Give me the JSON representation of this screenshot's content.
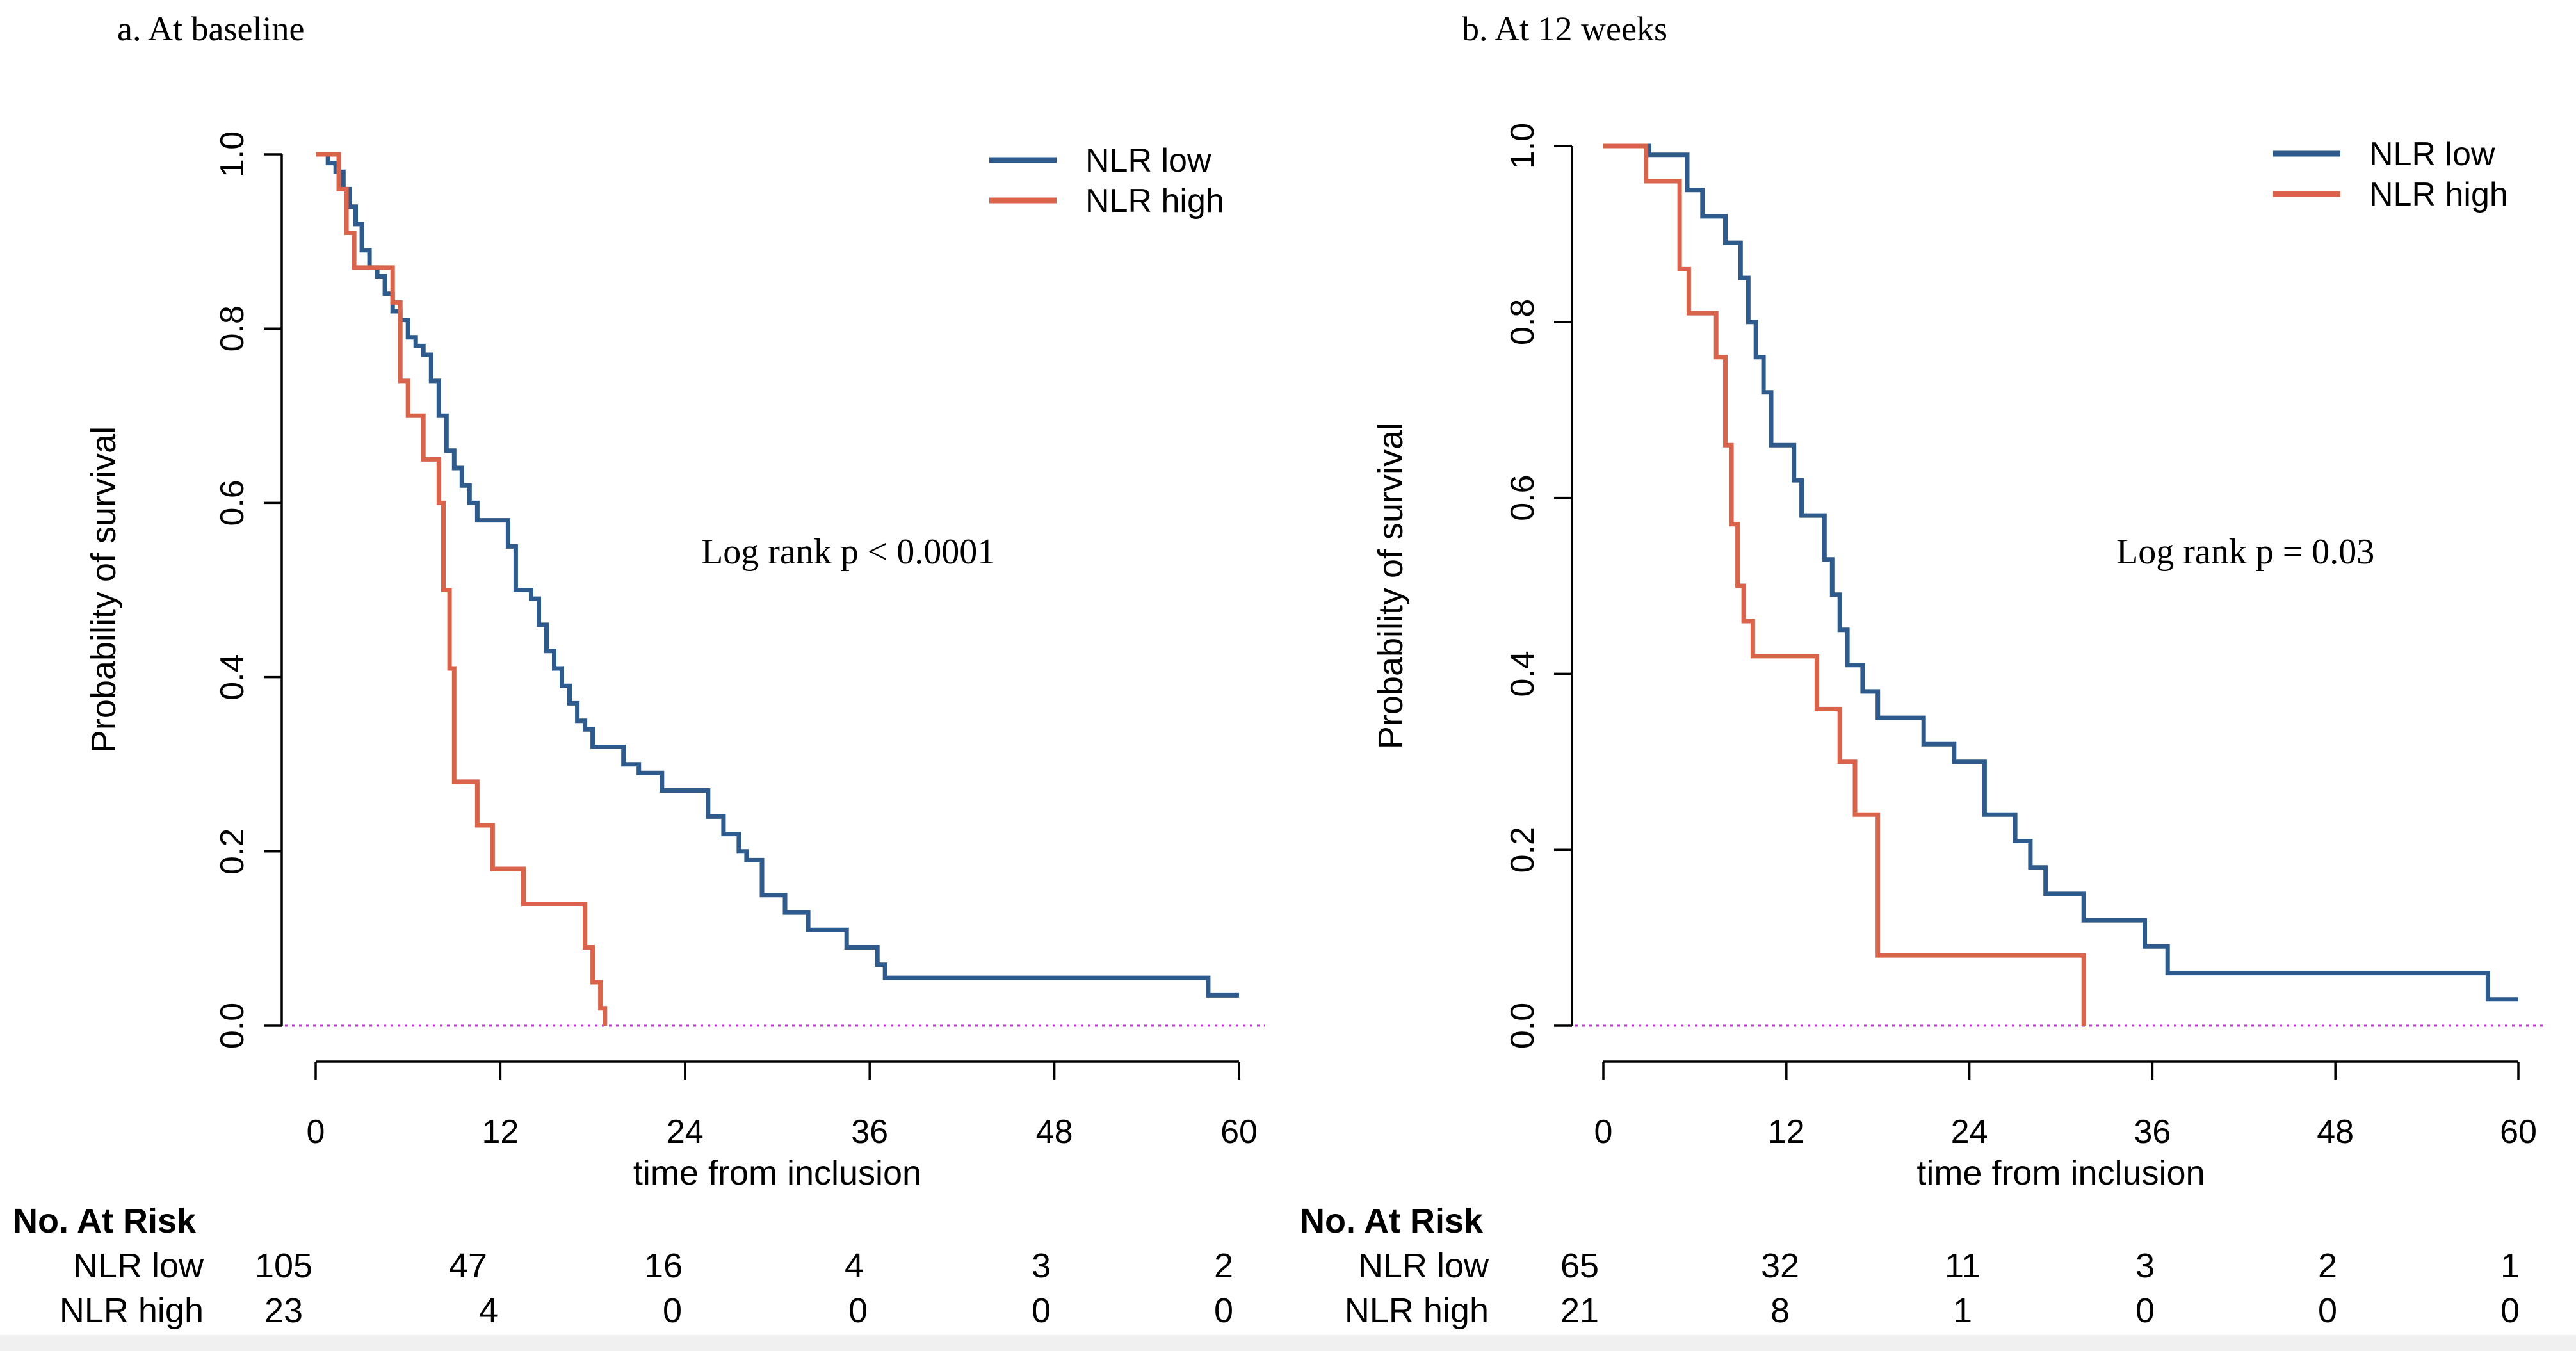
{
  "figure": {
    "colors": {
      "low": "#2e5a8c",
      "high": "#d9634b",
      "axis": "#000000",
      "ref": "#c22fd6"
    },
    "panels": [
      {
        "id": "a",
        "panel_title": "a. At baseline",
        "pvalue_text": "Log rank p < 0.0001",
        "risk_table": {
          "header": "No. At Risk",
          "rows": [
            {
              "label": "NLR low",
              "values": [
                "105",
                "47",
                "16",
                "4",
                "3",
                "2"
              ]
            },
            {
              "label": "NLR high",
              "values": [
                "23",
                "4",
                "0",
                "0",
                "0",
                "0"
              ]
            }
          ]
        }
      },
      {
        "id": "b",
        "panel_title": "b. At 12 weeks",
        "pvalue_text": "Log rank p = 0.03",
        "risk_table": {
          "header": "No. At Risk",
          "rows": [
            {
              "label": "NLR low",
              "values": [
                "65",
                "32",
                "11",
                "3",
                "2",
                "1"
              ]
            },
            {
              "label": "NLR high",
              "values": [
                "21",
                "8",
                "1",
                "0",
                "0",
                "0"
              ]
            }
          ]
        }
      }
    ]
  },
  "chart_data": [
    {
      "type": "line",
      "step": true,
      "title": "a. At baseline",
      "xlabel": "time from inclusion",
      "ylabel": "Probability of survival",
      "xlim": [
        0,
        60
      ],
      "ylim": [
        0,
        1
      ],
      "xticks": [
        0,
        12,
        24,
        36,
        48,
        60
      ],
      "xtick_labels": [
        "0",
        "12",
        "24",
        "36",
        "48",
        "60"
      ],
      "yticks": [
        0,
        0.2,
        0.4,
        0.6,
        0.8,
        1.0
      ],
      "ytick_labels": [
        "0.0",
        "0.2",
        "0.4",
        "0.6",
        "0.8",
        "1.0"
      ],
      "reference_line_y": 0,
      "legend": {
        "position": "top-right",
        "entries": [
          "NLR low",
          "NLR high"
        ]
      },
      "annotation": "Log rank p < 0.0001",
      "series": [
        {
          "name": "NLR low",
          "color": "#2e5a8c",
          "x": [
            0,
            0.8,
            1.3,
            1.8,
            2.2,
            2.6,
            3.0,
            3.5,
            4.0,
            4.5,
            5.0,
            5.5,
            6.0,
            6.5,
            7.0,
            7.5,
            8.0,
            8.5,
            9.0,
            9.5,
            10.0,
            10.5,
            11.0,
            12.5,
            13.0,
            14.0,
            14.5,
            15.0,
            15.5,
            16.0,
            16.5,
            17.0,
            17.5,
            18.0,
            19.0,
            20.0,
            21.0,
            22.5,
            25.5,
            26.5,
            27.5,
            28.0,
            29.0,
            30.5,
            32.0,
            34.5,
            36.5,
            37.0,
            58.0,
            60.0
          ],
          "y": [
            1.0,
            0.99,
            0.98,
            0.96,
            0.94,
            0.92,
            0.89,
            0.87,
            0.86,
            0.84,
            0.82,
            0.81,
            0.79,
            0.78,
            0.77,
            0.74,
            0.7,
            0.66,
            0.64,
            0.62,
            0.6,
            0.58,
            0.58,
            0.55,
            0.5,
            0.49,
            0.46,
            0.43,
            0.41,
            0.39,
            0.37,
            0.35,
            0.34,
            0.32,
            0.32,
            0.3,
            0.29,
            0.27,
            0.24,
            0.22,
            0.2,
            0.19,
            0.15,
            0.13,
            0.11,
            0.09,
            0.07,
            0.055,
            0.035,
            0.035
          ]
        },
        {
          "name": "NLR high",
          "color": "#d9634b",
          "x": [
            0,
            1.5,
            2.0,
            2.5,
            5.0,
            5.5,
            6.0,
            7.0,
            8.0,
            8.3,
            8.7,
            9.0,
            10.5,
            11.5,
            13.5,
            17.5,
            18.0,
            18.5,
            18.8
          ],
          "y": [
            1.0,
            0.96,
            0.91,
            0.87,
            0.83,
            0.74,
            0.7,
            0.65,
            0.6,
            0.5,
            0.41,
            0.28,
            0.23,
            0.18,
            0.14,
            0.09,
            0.05,
            0.02,
            0.0
          ]
        }
      ],
      "risk_table": {
        "times": [
          0,
          12,
          24,
          36,
          48,
          60
        ],
        "NLR low": [
          105,
          47,
          16,
          4,
          3,
          2
        ],
        "NLR high": [
          23,
          4,
          0,
          0,
          0,
          0
        ]
      }
    },
    {
      "type": "line",
      "step": true,
      "title": "b. At 12 weeks",
      "xlabel": "time from inclusion",
      "ylabel": "Probability of survival",
      "xlim": [
        0,
        60
      ],
      "ylim": [
        0,
        1
      ],
      "xticks": [
        0,
        12,
        24,
        36,
        48,
        60
      ],
      "xtick_labels": [
        "0",
        "12",
        "24",
        "36",
        "48",
        "60"
      ],
      "yticks": [
        0,
        0.2,
        0.4,
        0.6,
        0.8,
        1.0
      ],
      "ytick_labels": [
        "0.0",
        "0.2",
        "0.4",
        "0.6",
        "0.8",
        "1.0"
      ],
      "reference_line_y": 0,
      "legend": {
        "position": "top-right",
        "entries": [
          "NLR low",
          "NLR high"
        ]
      },
      "annotation": "Log rank p = 0.03",
      "series": [
        {
          "name": "NLR low",
          "color": "#2e5a8c",
          "x": [
            0,
            3.0,
            5.5,
            6.5,
            8.0,
            9.0,
            9.5,
            10.0,
            10.5,
            11.0,
            12.5,
            13.0,
            14.5,
            15.0,
            15.5,
            16.0,
            17.0,
            18.0,
            21.0,
            23.0,
            25.0,
            27.0,
            28.0,
            29.0,
            31.5,
            35.5,
            37.0,
            58.0,
            60.0
          ],
          "y": [
            1.0,
            0.99,
            0.95,
            0.92,
            0.89,
            0.85,
            0.8,
            0.76,
            0.72,
            0.66,
            0.62,
            0.58,
            0.53,
            0.49,
            0.45,
            0.41,
            0.38,
            0.35,
            0.32,
            0.3,
            0.24,
            0.21,
            0.18,
            0.15,
            0.12,
            0.09,
            0.06,
            0.03,
            0.03
          ]
        },
        {
          "name": "NLR high",
          "color": "#d9634b",
          "x": [
            0,
            2.8,
            5.0,
            5.6,
            7.4,
            8.0,
            8.4,
            8.8,
            9.2,
            9.8,
            14.0,
            15.5,
            16.5,
            18.0,
            31.5
          ],
          "y": [
            1.0,
            0.96,
            0.86,
            0.81,
            0.76,
            0.66,
            0.57,
            0.5,
            0.46,
            0.42,
            0.36,
            0.3,
            0.24,
            0.08,
            0.0
          ]
        }
      ],
      "risk_table": {
        "times": [
          0,
          12,
          24,
          36,
          48,
          60
        ],
        "NLR low": [
          65,
          32,
          11,
          3,
          2,
          1
        ],
        "NLR high": [
          21,
          8,
          1,
          0,
          0,
          0
        ]
      }
    }
  ]
}
